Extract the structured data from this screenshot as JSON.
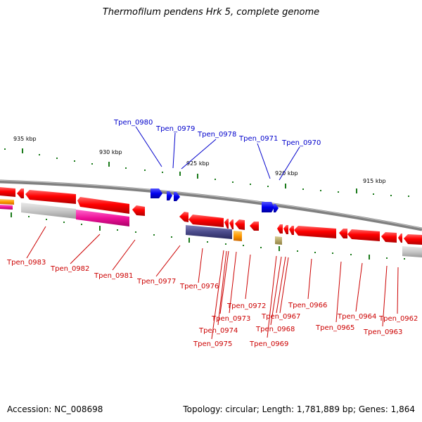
{
  "title": "Thermofilum pendens Hrk 5, complete genome",
  "accession": "Accession: NC_008698",
  "summary": "Topology: circular; Length: 1,781,889 bp; Genes: 1,864",
  "colors": {
    "forward_gene": "#ff0000",
    "reverse_gene": "#ff0000",
    "rna_gene": "#0000ee",
    "forward_label": "#0000cc",
    "reverse_label": "#cc0000",
    "backbone": "#808080",
    "tick": "#1a7a1a",
    "blast_grey": "#c8c8c8",
    "blast_pink": "#ee1199",
    "blast_orange": "#ff9900",
    "blast_purple": "#4a4a8a",
    "blast_olive": "#b0a060"
  },
  "scale_labels": [
    "935 kbp",
    "930 kbp",
    "925 kbp",
    "920 kbp",
    "915 kbp"
  ],
  "forward_gene_labels": [
    "Tpen_0980",
    "Tpen_0979",
    "Tpen_0978",
    "Tpen_0971",
    "Tpen_0970"
  ],
  "reverse_gene_labels": [
    "Tpen_0983",
    "Tpen_0982",
    "Tpen_0981",
    "Tpen_0977",
    "Tpen_0976",
    "Tpen_0975",
    "Tpen_0974",
    "Tpen_0973",
    "Tpen_0972",
    "Tpen_0969",
    "Tpen_0968",
    "Tpen_0967",
    "Tpen_0966",
    "Tpen_0965",
    "Tpen_0964",
    "Tpen_0963",
    "Tpen_0962"
  ]
}
